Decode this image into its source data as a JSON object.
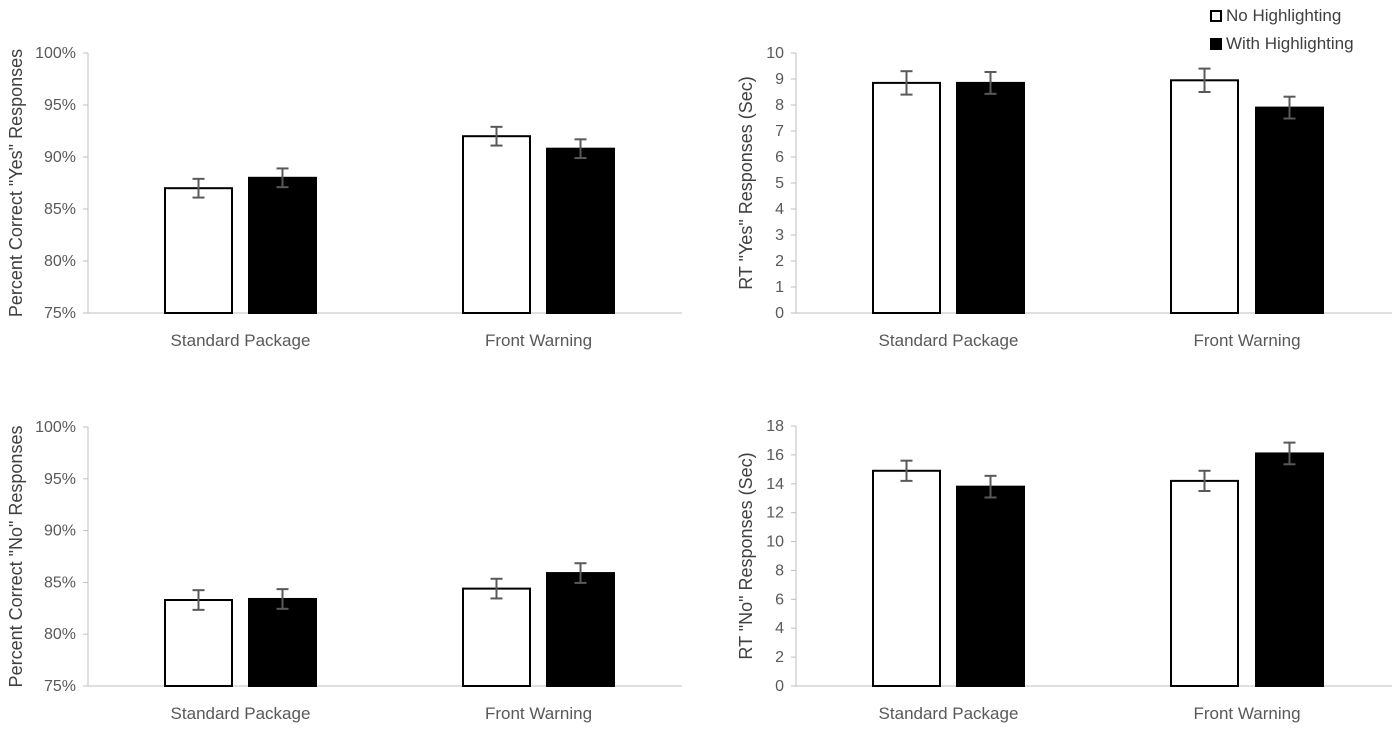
{
  "legend": {
    "items": [
      {
        "label": "No Highlighting",
        "fill": "#ffffff"
      },
      {
        "label": "With Highlighting",
        "fill": "#000000"
      }
    ]
  },
  "colors": {
    "axis": "#bfbfbf",
    "bar_stroke": "#000000",
    "error_bar": "#595959"
  },
  "chart_data": [
    {
      "id": "yes-accuracy",
      "type": "bar",
      "categories": [
        "Standard Package",
        "Front Warning"
      ],
      "series": [
        {
          "name": "No Highlighting",
          "values": [
            87.0,
            92.0
          ],
          "errors": [
            0.9,
            0.9
          ]
        },
        {
          "name": "With Highlighting",
          "values": [
            88.0,
            90.8
          ],
          "errors": [
            0.9,
            0.9
          ]
        }
      ],
      "ylabel": "Percent Correct \"Yes\" Responses",
      "ylim": [
        75,
        100
      ],
      "ytick_step": 5,
      "yticks": [
        "75%",
        "80%",
        "85%",
        "90%",
        "95%",
        "100%"
      ],
      "grid": false
    },
    {
      "id": "yes-rt",
      "type": "bar",
      "categories": [
        "Standard Package",
        "Front Warning"
      ],
      "series": [
        {
          "name": "No Highlighting",
          "values": [
            8.85,
            8.95
          ],
          "errors": [
            0.45,
            0.45
          ]
        },
        {
          "name": "With Highlighting",
          "values": [
            8.85,
            7.9
          ],
          "errors": [
            0.42,
            0.42
          ]
        }
      ],
      "ylabel": "RT \"Yes\" Responses (Sec)",
      "ylim": [
        0,
        10
      ],
      "ytick_step": 1,
      "yticks": [
        "0",
        "1",
        "2",
        "3",
        "4",
        "5",
        "6",
        "7",
        "8",
        "9",
        "10"
      ],
      "grid": false
    },
    {
      "id": "no-accuracy",
      "type": "bar",
      "categories": [
        "Standard Package",
        "Front Warning"
      ],
      "series": [
        {
          "name": "No Highlighting",
          "values": [
            83.3,
            84.4
          ],
          "errors": [
            0.95,
            0.95
          ]
        },
        {
          "name": "With Highlighting",
          "values": [
            83.4,
            85.9
          ],
          "errors": [
            0.95,
            0.95
          ]
        }
      ],
      "ylabel": "Percent Correct \"No\" Responses",
      "ylim": [
        75,
        100
      ],
      "ytick_step": 5,
      "yticks": [
        "75%",
        "80%",
        "85%",
        "90%",
        "95%",
        "100%"
      ],
      "grid": false
    },
    {
      "id": "no-rt",
      "type": "bar",
      "categories": [
        "Standard Package",
        "Front Warning"
      ],
      "series": [
        {
          "name": "No Highlighting",
          "values": [
            14.9,
            14.2
          ],
          "errors": [
            0.7,
            0.7
          ]
        },
        {
          "name": "With Highlighting",
          "values": [
            13.8,
            16.1
          ],
          "errors": [
            0.75,
            0.75
          ]
        }
      ],
      "ylabel": "RT \"No\" Responses (Sec)",
      "ylim": [
        0,
        18
      ],
      "ytick_step": 2,
      "yticks": [
        "0",
        "2",
        "4",
        "6",
        "8",
        "10",
        "12",
        "14",
        "16",
        "18"
      ],
      "grid": false
    }
  ]
}
